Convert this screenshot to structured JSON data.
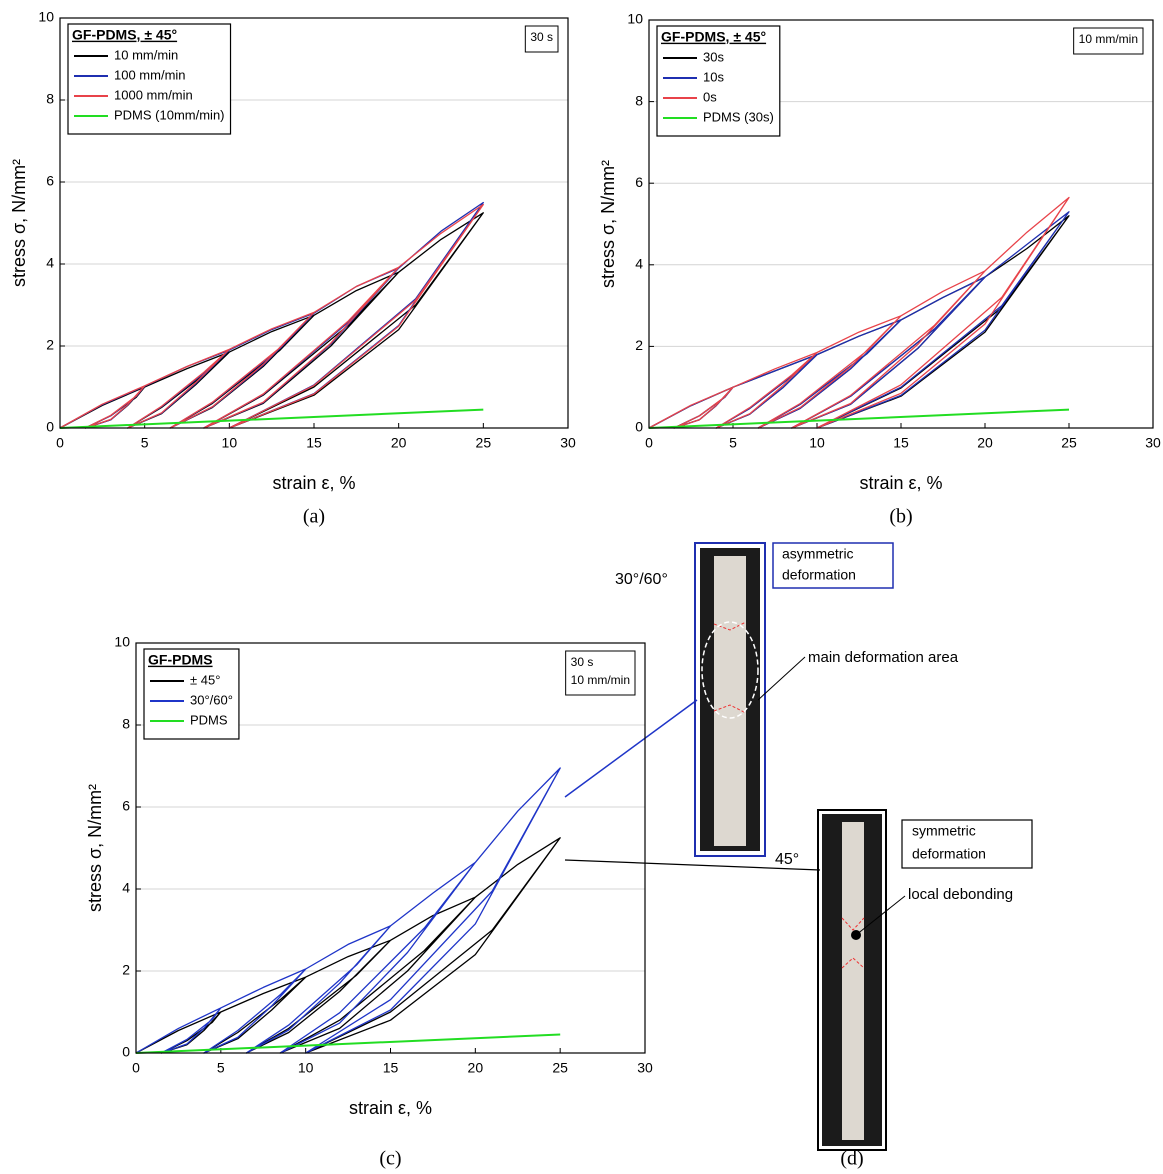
{
  "chart_data": [
    {
      "type": "line",
      "panel_label": "(a)",
      "x_label": "strain ε, %",
      "y_label": "stress σ, N/mm²",
      "legend": "upper left",
      "legend_title": "GF-PDMS, ± 45°",
      "annotation": [
        "30 s"
      ],
      "grid": true,
      "xlim": [
        0,
        30
      ],
      "xticks": [
        0,
        5,
        10,
        15,
        20,
        25,
        30
      ],
      "ylim": [
        0,
        10
      ],
      "yticks": [
        0,
        2,
        4,
        6,
        8,
        10
      ],
      "x": [
        0,
        2.5,
        5,
        4,
        3,
        1.5,
        3,
        4.5,
        5,
        7.5,
        10,
        8,
        6,
        4,
        6,
        8.5,
        10,
        12.5,
        15,
        12,
        9,
        6.5,
        9,
        13,
        15,
        17.5,
        20,
        16,
        12,
        8.5,
        12,
        17,
        20,
        22.5,
        25,
        20,
        15,
        10,
        15,
        21,
        25
      ],
      "series": [
        {
          "name": "10 mm/min",
          "color": "#000000",
          "values": [
            0,
            0.55,
            1.0,
            0.55,
            0.2,
            0,
            0.3,
            0.75,
            1.0,
            1.45,
            1.85,
            1.05,
            0.35,
            0,
            0.5,
            1.3,
            1.85,
            2.35,
            2.75,
            1.5,
            0.5,
            0,
            0.6,
            1.9,
            2.75,
            3.35,
            3.8,
            2.0,
            0.6,
            0,
            0.8,
            2.5,
            3.8,
            4.6,
            5.25,
            2.4,
            0.8,
            0,
            1.0,
            3.0,
            5.25
          ]
        },
        {
          "name": "100 mm/min",
          "color": "#1f2fb0",
          "values": [
            0,
            0.57,
            1.02,
            0.56,
            0.2,
            0,
            0.3,
            0.77,
            1.02,
            1.5,
            1.9,
            1.08,
            0.36,
            0,
            0.52,
            1.34,
            1.9,
            2.4,
            2.8,
            1.53,
            0.51,
            0,
            0.62,
            1.94,
            2.8,
            3.45,
            3.9,
            2.05,
            0.62,
            0,
            0.82,
            2.57,
            3.9,
            4.8,
            5.5,
            2.5,
            0.84,
            0,
            1.05,
            3.15,
            5.5
          ]
        },
        {
          "name": "1000 mm/min",
          "color": "#e8434a",
          "values": [
            0,
            0.58,
            1.03,
            0.57,
            0.21,
            0,
            0.31,
            0.78,
            1.03,
            1.5,
            1.92,
            1.1,
            0.37,
            0,
            0.53,
            1.36,
            1.92,
            2.42,
            2.82,
            1.55,
            0.52,
            0,
            0.63,
            1.96,
            2.82,
            3.45,
            3.92,
            2.07,
            0.63,
            0,
            0.83,
            2.6,
            3.92,
            4.75,
            5.45,
            2.48,
            0.83,
            0,
            1.04,
            3.12,
            5.45
          ]
        },
        {
          "name": "PDMS (10mm/min)",
          "color": "#22dd22",
          "x": [
            0,
            25
          ],
          "values": [
            0,
            0.45
          ]
        }
      ]
    },
    {
      "type": "line",
      "panel_label": "(b)",
      "x_label": "strain ε, %",
      "y_label": "stress σ, N/mm²",
      "legend": "upper left",
      "legend_title": "GF-PDMS, ± 45°",
      "annotation": [
        "10 mm/min"
      ],
      "grid": true,
      "xlim": [
        0,
        30
      ],
      "xticks": [
        0,
        5,
        10,
        15,
        20,
        25,
        30
      ],
      "ylim": [
        0,
        10
      ],
      "yticks": [
        0,
        2,
        4,
        6,
        8,
        10
      ],
      "x": [
        0,
        2.5,
        5,
        4,
        3,
        1.5,
        3,
        4.5,
        5,
        7.5,
        10,
        8,
        6,
        4,
        6,
        8.5,
        10,
        12.5,
        15,
        12,
        9,
        6.5,
        9,
        13,
        15,
        17.5,
        20,
        16,
        12,
        8.5,
        12,
        17,
        20,
        22.5,
        25,
        20,
        15,
        10,
        15,
        21,
        25
      ],
      "series": [
        {
          "name": "30s",
          "color": "#000000",
          "values": [
            0,
            0.55,
            1.0,
            0.55,
            0.2,
            0,
            0.3,
            0.75,
            1.0,
            1.4,
            1.8,
            1.0,
            0.34,
            0,
            0.48,
            1.27,
            1.8,
            2.25,
            2.65,
            1.45,
            0.48,
            0,
            0.58,
            1.83,
            2.65,
            3.2,
            3.7,
            1.95,
            0.58,
            0,
            0.78,
            2.43,
            3.7,
            4.4,
            5.2,
            2.35,
            0.78,
            0,
            0.98,
            2.95,
            5.2
          ]
        },
        {
          "name": "10s",
          "color": "#1f2fb0",
          "values": [
            0,
            0.55,
            1.0,
            0.55,
            0.2,
            0,
            0.3,
            0.75,
            1.0,
            1.4,
            1.8,
            1.0,
            0.34,
            0,
            0.48,
            1.27,
            1.8,
            2.25,
            2.65,
            1.45,
            0.48,
            0,
            0.58,
            1.83,
            2.65,
            3.2,
            3.7,
            1.95,
            0.58,
            0,
            0.78,
            2.43,
            3.7,
            4.5,
            5.3,
            2.4,
            0.8,
            0,
            1.0,
            3.0,
            5.3
          ]
        },
        {
          "name": "0s",
          "color": "#e8434a",
          "values": [
            0,
            0.56,
            1.0,
            0.56,
            0.2,
            0,
            0.3,
            0.76,
            1.0,
            1.45,
            1.85,
            1.05,
            0.35,
            0,
            0.5,
            1.3,
            1.85,
            2.35,
            2.75,
            1.5,
            0.5,
            0,
            0.6,
            1.9,
            2.75,
            3.35,
            3.85,
            2.05,
            0.6,
            0,
            0.8,
            2.52,
            3.85,
            4.8,
            5.65,
            2.55,
            0.85,
            0,
            1.06,
            3.2,
            5.65
          ]
        },
        {
          "name": "PDMS (30s)",
          "color": "#22dd22",
          "x": [
            0,
            25
          ],
          "values": [
            0,
            0.45
          ]
        }
      ]
    },
    {
      "type": "line",
      "panel_label": "(c)",
      "x_label": "strain ε, %",
      "y_label": "stress σ, N/mm²",
      "legend": "upper left",
      "legend_title": "GF-PDMS",
      "annotation": [
        "30 s",
        "10 mm/min"
      ],
      "grid": true,
      "xlim": [
        0,
        30
      ],
      "xticks": [
        0,
        5,
        10,
        15,
        20,
        25,
        30
      ],
      "ylim": [
        0,
        10
      ],
      "yticks": [
        0,
        2,
        4,
        6,
        8,
        10
      ],
      "x": [
        0,
        2.5,
        5,
        4,
        3,
        1.5,
        3,
        4.5,
        5,
        7.5,
        10,
        8,
        6,
        4,
        6,
        8.5,
        10,
        12.5,
        15,
        12,
        9,
        6.5,
        9,
        13,
        15,
        17.5,
        20,
        16,
        12,
        8.5,
        12,
        17,
        20,
        22.5,
        25,
        20,
        15,
        10,
        15,
        21,
        25
      ],
      "series": [
        {
          "name": "± 45°",
          "color": "#000000",
          "values": [
            0,
            0.55,
            1.0,
            0.55,
            0.2,
            0,
            0.3,
            0.75,
            1.0,
            1.45,
            1.85,
            1.05,
            0.35,
            0,
            0.5,
            1.3,
            1.85,
            2.35,
            2.75,
            1.5,
            0.5,
            0,
            0.6,
            1.9,
            2.75,
            3.35,
            3.8,
            2.0,
            0.6,
            0,
            0.8,
            2.5,
            3.8,
            4.6,
            5.25,
            2.4,
            0.8,
            0,
            1.0,
            3.0,
            5.25
          ]
        },
        {
          "name": "30°/60°",
          "color": "#1f35c8",
          "values": [
            0,
            0.6,
            1.1,
            0.6,
            0.22,
            0,
            0.33,
            0.82,
            1.1,
            1.6,
            2.05,
            1.15,
            0.38,
            0,
            0.55,
            1.42,
            2.05,
            2.65,
            3.1,
            1.7,
            0.56,
            0,
            0.68,
            2.15,
            3.1,
            3.9,
            4.65,
            2.45,
            0.73,
            0,
            0.98,
            3.05,
            4.65,
            5.9,
            6.95,
            3.15,
            1.05,
            0,
            1.3,
            3.95,
            6.95
          ]
        },
        {
          "name": "PDMS",
          "color": "#22dd22",
          "x": [
            0,
            25
          ],
          "values": [
            0,
            0.45
          ]
        }
      ]
    }
  ],
  "panel_d": {
    "label": "(d)",
    "specimens": [
      {
        "angle": "30°/60°",
        "note": [
          "asymmetric",
          "deformation"
        ],
        "callout": "main deformation area"
      },
      {
        "angle": "45°",
        "note": [
          "symmetric",
          "deformation"
        ],
        "callout": "local debonding"
      }
    ]
  }
}
